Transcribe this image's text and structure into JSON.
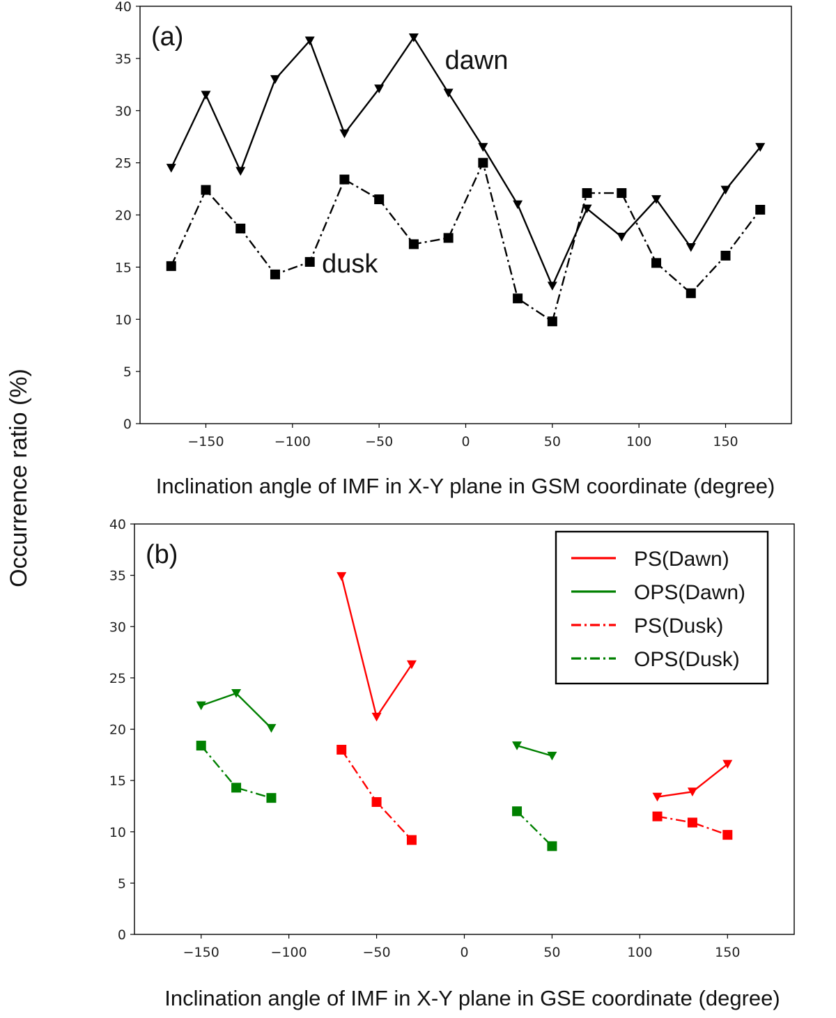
{
  "ylabel": "Occurrence ratio (%)",
  "colors": {
    "black": "#000000",
    "red": "#ff0000",
    "green": "#008000"
  },
  "chart_data": [
    {
      "panel": "(a)",
      "type": "line",
      "xlabel": "Inclination angle of IMF in X-Y plane in GSM coordinate (degree)",
      "xlim": [
        -188,
        188
      ],
      "ylim": [
        0,
        40
      ],
      "xticks": [
        -150,
        -100,
        -50,
        0,
        50,
        100,
        150
      ],
      "yticks": [
        0,
        5,
        10,
        15,
        20,
        25,
        30,
        35,
        40
      ],
      "annotations": [
        {
          "text": "dawn",
          "x": -12,
          "y": 34
        },
        {
          "text": "dusk",
          "x": -83,
          "y": 14.5
        }
      ],
      "series": [
        {
          "style": "solid",
          "marker": "triangle-down",
          "color": "black",
          "segments": [
            {
              "x": [
                -170,
                -150,
                -130,
                -110,
                -90,
                -70,
                -50,
                -30,
                -10,
                10,
                30,
                50,
                70,
                90,
                110,
                130,
                150,
                170
              ],
              "y": [
                24.5,
                31.5,
                24.2,
                33,
                36.7,
                27.8,
                32.1,
                37,
                31.7,
                26.5,
                21,
                13.2,
                20.6,
                17.9,
                21.5,
                16.9,
                22.4,
                26.5
              ]
            }
          ]
        },
        {
          "style": "dashdot",
          "marker": "square",
          "color": "black",
          "segments": [
            {
              "x": [
                -170,
                -150,
                -130,
                -110,
                -90,
                -70,
                -50,
                -30,
                -10,
                10,
                30,
                50,
                70,
                90,
                110,
                130,
                150,
                170
              ],
              "y": [
                15.1,
                22.4,
                18.7,
                14.3,
                15.5,
                23.4,
                21.5,
                17.2,
                17.8,
                25,
                12,
                9.8,
                22.1,
                22.1,
                15.4,
                12.5,
                16.1,
                20.5
              ]
            }
          ]
        }
      ]
    },
    {
      "panel": "(b)",
      "type": "line",
      "xlabel": "Inclination angle of IMF in X-Y plane in GSE coordinate (degree)",
      "xlim": [
        -188,
        188
      ],
      "ylim": [
        0,
        40
      ],
      "xticks": [
        -150,
        -100,
        -50,
        0,
        50,
        100,
        150
      ],
      "yticks": [
        0,
        5,
        10,
        15,
        20,
        25,
        30,
        35,
        40
      ],
      "legend_position": "top-right",
      "series": [
        {
          "name": "PS(Dawn)",
          "style": "solid",
          "marker": "triangle-down",
          "color": "red",
          "segments": [
            {
              "x": [
                -70,
                -50,
                -30
              ],
              "y": [
                34.9,
                21.2,
                26.3
              ]
            },
            {
              "x": [
                110,
                130,
                150
              ],
              "y": [
                13.4,
                13.9,
                16.6
              ]
            }
          ]
        },
        {
          "name": "OPS(Dawn)",
          "style": "solid",
          "marker": "triangle-down",
          "color": "green",
          "segments": [
            {
              "x": [
                -150,
                -130,
                -110
              ],
              "y": [
                22.3,
                23.5,
                20.1
              ]
            },
            {
              "x": [
                30,
                50
              ],
              "y": [
                18.4,
                17.4
              ]
            }
          ]
        },
        {
          "name": "PS(Dusk)",
          "style": "dashdot",
          "marker": "square",
          "color": "red",
          "segments": [
            {
              "x": [
                -70,
                -50,
                -30
              ],
              "y": [
                18,
                12.9,
                9.2
              ]
            },
            {
              "x": [
                110,
                130,
                150
              ],
              "y": [
                11.5,
                10.9,
                9.7
              ]
            }
          ]
        },
        {
          "name": "OPS(Dusk)",
          "style": "dashdot",
          "marker": "square",
          "color": "green",
          "segments": [
            {
              "x": [
                -150,
                -130,
                -110
              ],
              "y": [
                18.4,
                14.3,
                13.3
              ]
            },
            {
              "x": [
                30,
                50
              ],
              "y": [
                12,
                8.6
              ]
            }
          ]
        }
      ]
    }
  ]
}
